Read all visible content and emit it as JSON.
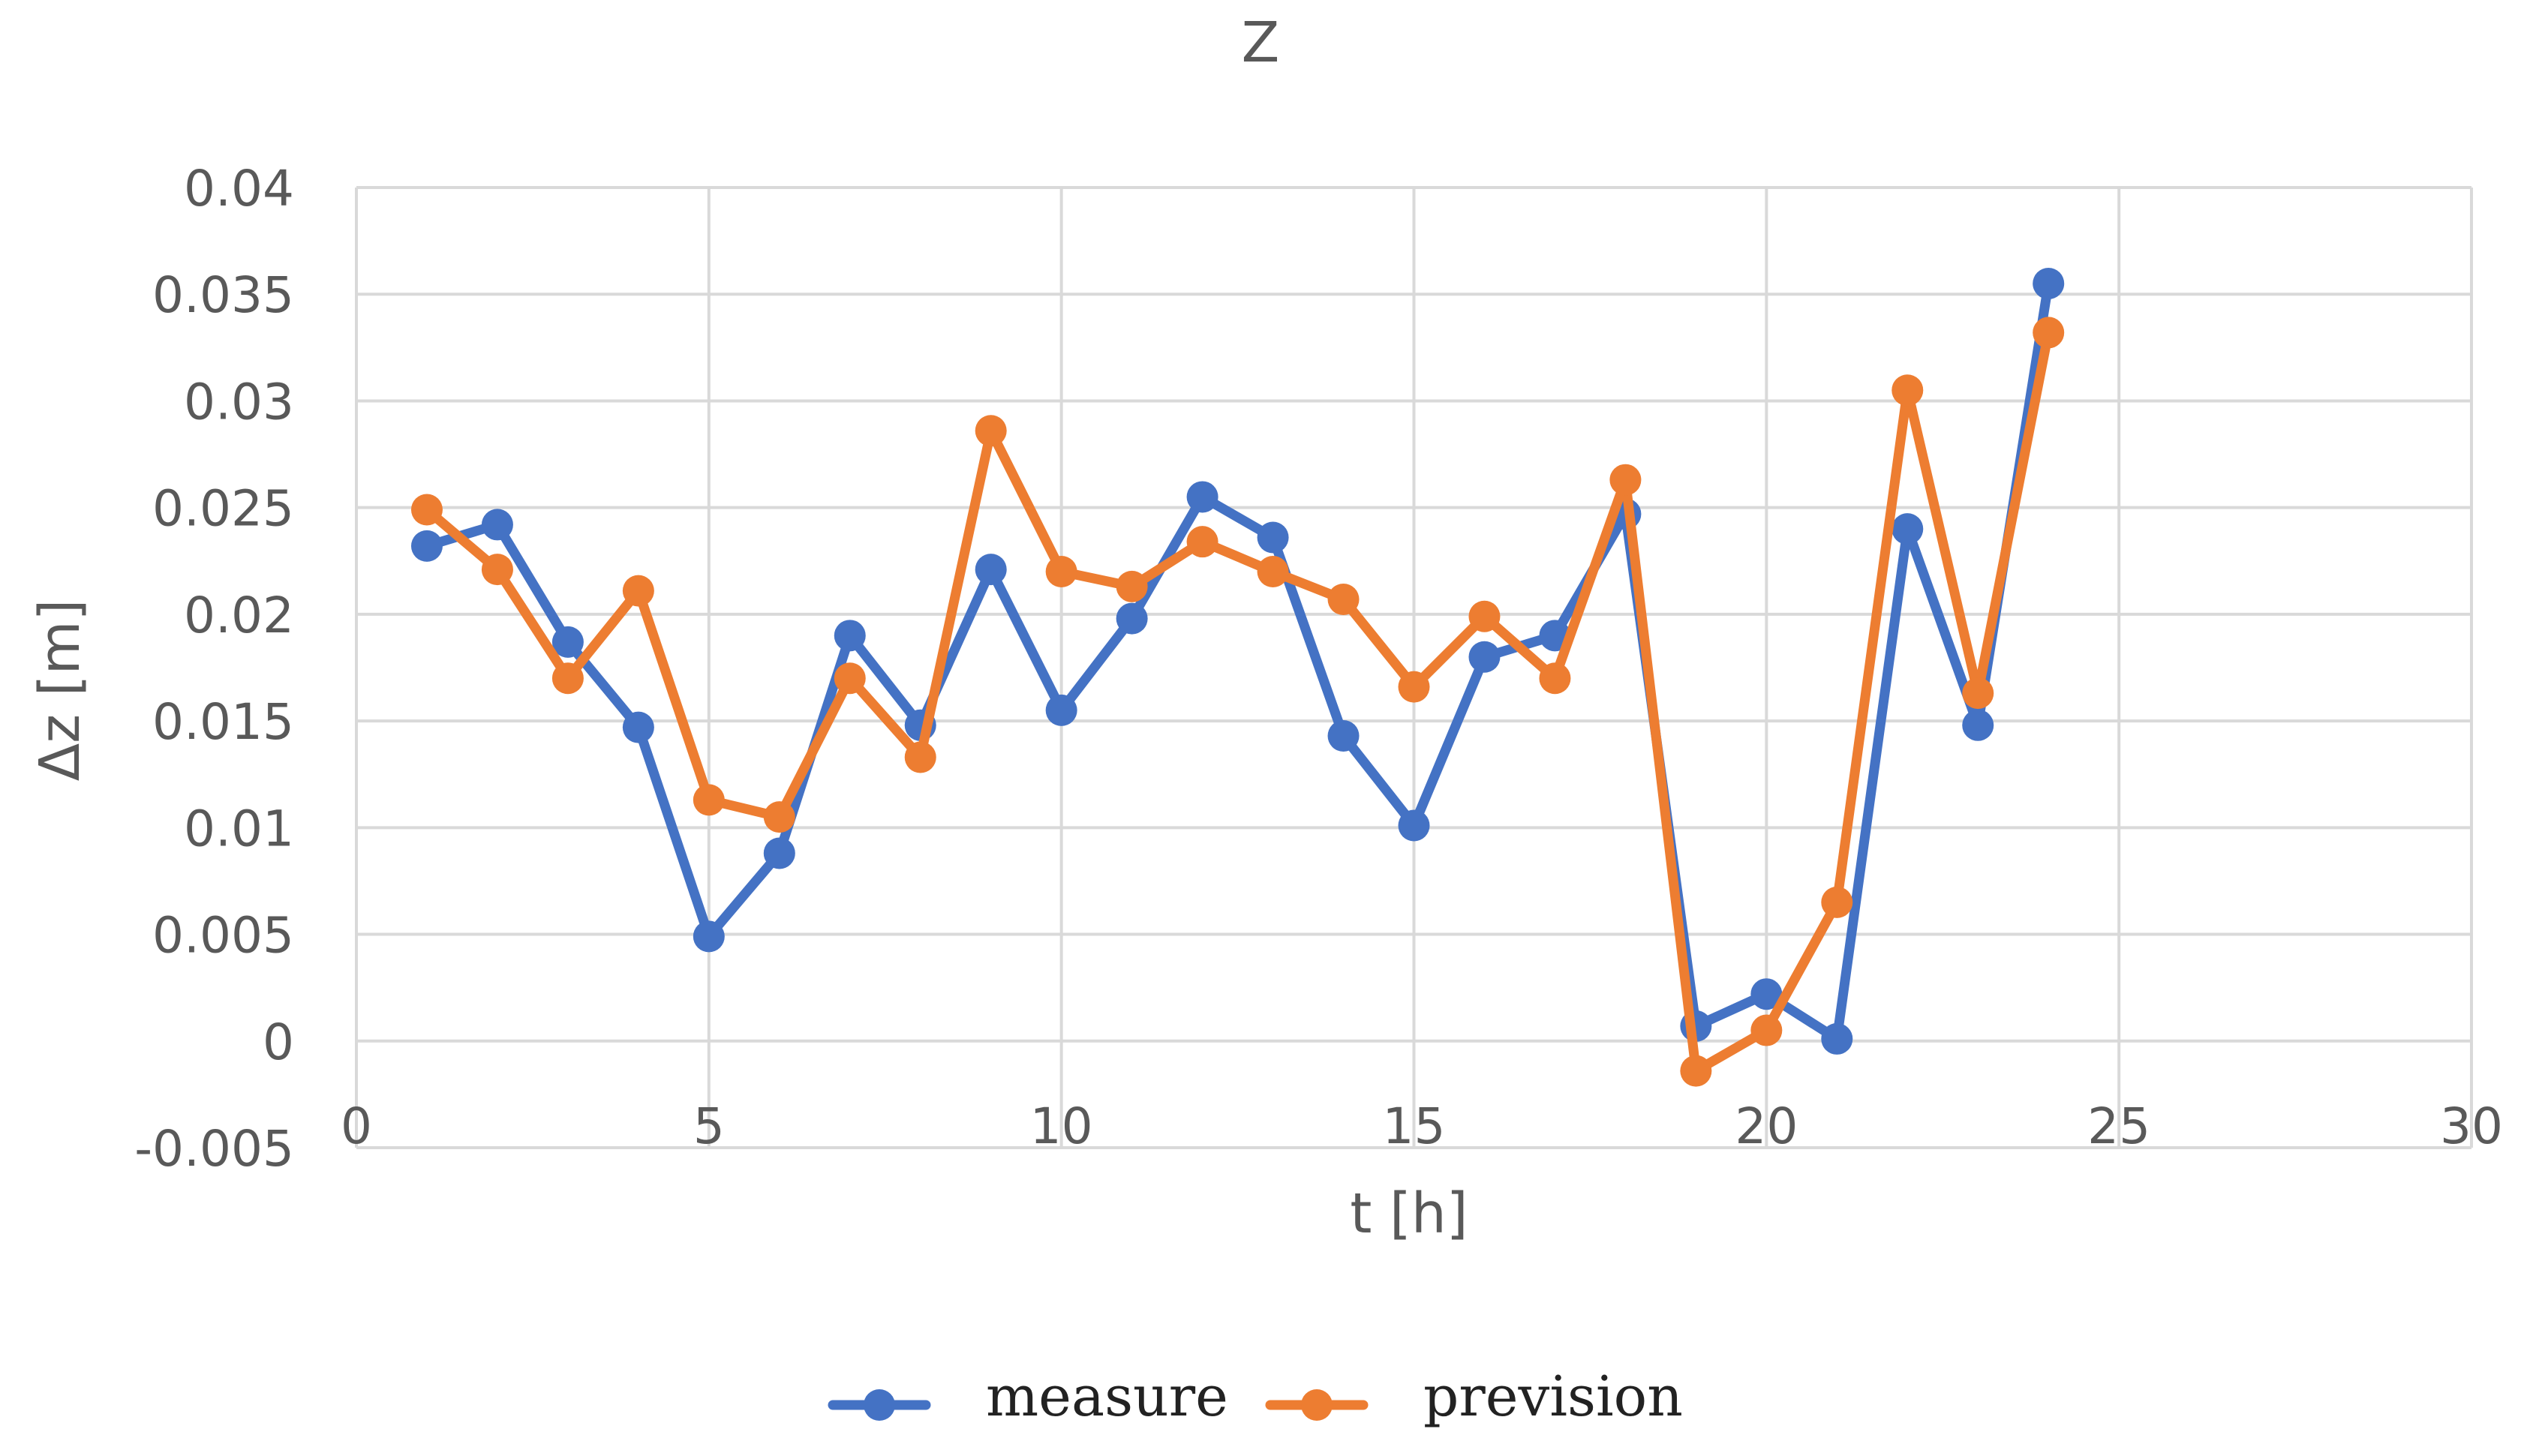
{
  "chart_data": {
    "type": "line",
    "title": "Z",
    "xlabel": "t [h]",
    "ylabel": "Δz [m]",
    "xlim": [
      0,
      30
    ],
    "ylim": [
      -0.005,
      0.04
    ],
    "xticks": [
      0,
      5,
      10,
      15,
      20,
      25,
      30
    ],
    "xtick_labels": [
      "0",
      "5",
      "10",
      "15",
      "20",
      "25",
      "30"
    ],
    "yticks": [
      -0.005,
      0,
      0.005,
      0.01,
      0.015,
      0.02,
      0.025,
      0.03,
      0.035,
      0.04
    ],
    "ytick_labels": [
      "-0.005",
      "0",
      "0.005",
      "0.01",
      "0.015",
      "0.02",
      "0.025",
      "0.03",
      "0.035",
      "0.04"
    ],
    "grid": true,
    "legend_position": "bottom-center",
    "x": [
      1,
      2,
      3,
      4,
      5,
      6,
      7,
      8,
      9,
      10,
      11,
      12,
      13,
      14,
      15,
      16,
      17,
      18,
      19,
      20,
      21,
      22,
      23,
      24
    ],
    "series": [
      {
        "name": "measure",
        "color": "#4472c4",
        "values": [
          0.0232,
          0.0242,
          0.0187,
          0.0147,
          0.0049,
          0.0088,
          0.019,
          0.0148,
          0.0221,
          0.0155,
          0.0198,
          0.0255,
          0.0236,
          0.0143,
          0.0101,
          0.018,
          0.019,
          0.0247,
          0.0007,
          0.0022,
          0.0001,
          0.024,
          0.0148,
          0.0355
        ]
      },
      {
        "name": "prevision",
        "color": "#ed7d31",
        "values": [
          0.0249,
          0.0221,
          0.017,
          0.0211,
          0.0113,
          0.0105,
          0.017,
          0.0133,
          0.0286,
          0.022,
          0.0213,
          0.0234,
          0.022,
          0.0207,
          0.0166,
          0.0199,
          0.017,
          0.0263,
          -0.0014,
          0.0005,
          0.0065,
          0.0305,
          0.0163,
          0.0332
        ]
      }
    ]
  }
}
